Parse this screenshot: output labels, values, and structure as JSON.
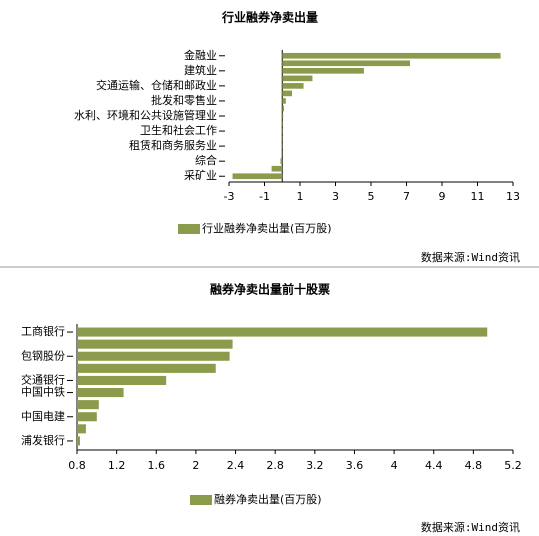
{
  "chart_data": [
    {
      "type": "barh",
      "title": "行业融券净卖出量",
      "categories": [
        "金融业",
        null,
        "建筑业",
        null,
        "交通运输、仓储和邮政业",
        null,
        "批发和零售业",
        null,
        "水利、环境和公共设施管理业",
        null,
        "卫生和社会工作",
        null,
        "租赁和商务服务业",
        null,
        "综合",
        null,
        "采矿业"
      ],
      "series": [
        {
          "name": "行业融券净卖出量(百万股)",
          "color": "#8a9b4b",
          "values": [
            12.3,
            7.2,
            4.6,
            1.7,
            1.2,
            0.55,
            0.2,
            0.1,
            0.05,
            0.04,
            0.03,
            0.02,
            0.02,
            0.01,
            -0.1,
            -0.6,
            -2.8
          ]
        }
      ],
      "xlim": [
        -3,
        13
      ],
      "xticks": [
        -3,
        -1,
        1,
        3,
        5,
        7,
        9,
        11,
        13
      ],
      "source": "数据来源:Wind资讯"
    },
    {
      "type": "barh",
      "title": "融券净卖出量前十股票",
      "categories": [
        "工商银行",
        null,
        "包钢股份",
        null,
        "交通银行",
        "中国中铁",
        null,
        "中国电建",
        null,
        "浦发银行"
      ],
      "series": [
        {
          "name": "融券净卖出量(百万股)",
          "color": "#8a9b4b",
          "values": [
            4.94,
            2.37,
            2.34,
            2.2,
            1.7,
            1.27,
            1.02,
            1.0,
            0.89,
            0.83
          ]
        }
      ],
      "xlim": [
        0.8,
        5.2
      ],
      "xticks": [
        0.8,
        1.2,
        1.6,
        2.0,
        2.4,
        2.8,
        3.2,
        3.6,
        4.0,
        4.4,
        4.8,
        5.2
      ],
      "source": "数据来源:Wind资讯"
    }
  ]
}
